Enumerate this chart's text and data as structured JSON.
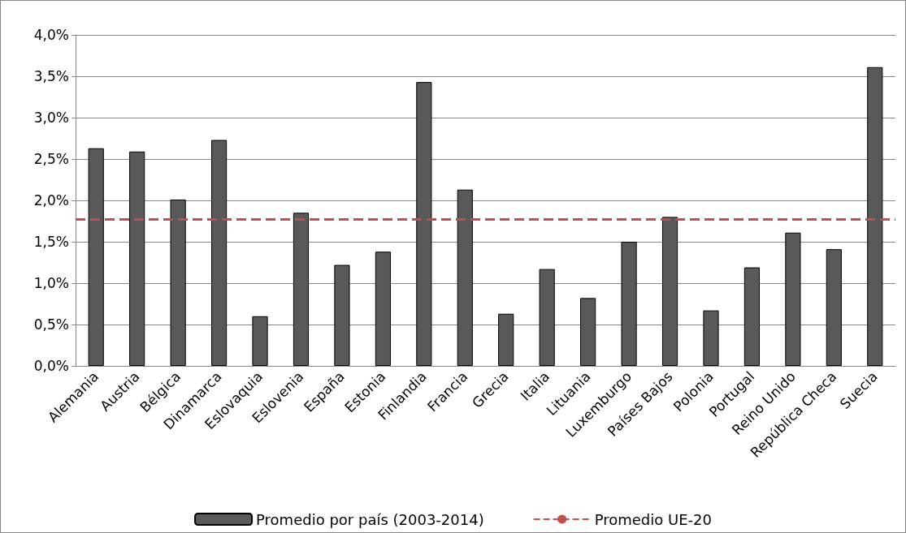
{
  "chart_data": {
    "type": "bar",
    "categories": [
      "Alemania",
      "Austria",
      "Bélgica",
      "Dinamarca",
      "Eslovaquia",
      "Eslovenia",
      "España",
      "Estonia",
      "Finlandia",
      "Francia",
      "Grecia",
      "Italia",
      "Lituania",
      "Luxemburgo",
      "Países Bajos",
      "Polonia",
      "Portugal",
      "Reino Unido",
      "República Checa",
      "Suecia"
    ],
    "series": [
      {
        "name": "Promedio por país (2003-2014)",
        "color": "#595959",
        "values": [
          2.63,
          2.59,
          2.01,
          2.73,
          0.6,
          1.85,
          1.22,
          1.38,
          3.43,
          2.13,
          0.63,
          1.17,
          0.82,
          1.5,
          1.8,
          0.67,
          1.19,
          1.61,
          1.41,
          3.61
        ]
      }
    ],
    "ylim": [
      0,
      4
    ],
    "yticks": [
      {
        "value": 0,
        "label": "0,0%"
      },
      {
        "value": 0.5,
        "label": "0,5%"
      },
      {
        "value": 1,
        "label": "1,0%"
      },
      {
        "value": 1.5,
        "label": "1,5%"
      },
      {
        "value": 2,
        "label": "2,0%"
      },
      {
        "value": 2.5,
        "label": "2,5%"
      },
      {
        "value": 3,
        "label": "3,0%"
      },
      {
        "value": 3.5,
        "label": "3,5%"
      },
      {
        "value": 4,
        "label": "4,0%"
      }
    ],
    "ref_lines": [
      {
        "axis": "y",
        "value": 1.77,
        "label": "Promedio UE-20",
        "color": "#c0504d",
        "line_style": "dashed"
      }
    ],
    "grid": "y",
    "legend": "bottom"
  }
}
